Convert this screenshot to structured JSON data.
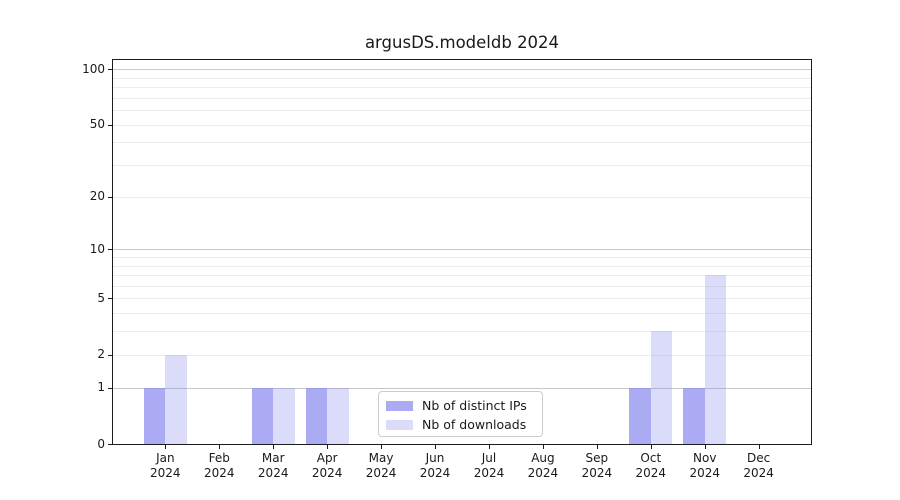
{
  "chart_data": {
    "type": "bar",
    "title": "argusDS.modeldb 2024",
    "categories": [
      "Jan",
      "Feb",
      "Mar",
      "Apr",
      "May",
      "Jun",
      "Jul",
      "Aug",
      "Sep",
      "Oct",
      "Nov",
      "Dec"
    ],
    "category_sublabel": "2024",
    "series": [
      {
        "name": "Nb of distinct IPs",
        "color": "rgba(136,136,238,0.7)",
        "values": [
          1,
          0,
          1,
          1,
          0,
          0,
          0,
          0,
          0,
          1,
          1,
          0
        ]
      },
      {
        "name": "Nb of downloads",
        "color": "rgba(136,136,238,0.3)",
        "values": [
          2,
          0,
          1,
          1,
          0,
          0,
          0,
          0,
          0,
          3,
          7,
          0
        ]
      }
    ],
    "yscale": "log1p",
    "ylabel": "",
    "xlabel": "",
    "y_tick_labels": [
      0,
      1,
      2,
      5,
      10,
      20,
      50,
      100
    ],
    "y_major_gridlines": [
      1,
      10,
      100
    ],
    "y_minor_gridlines": [
      2,
      3,
      4,
      5,
      6,
      7,
      8,
      9,
      20,
      30,
      40,
      50,
      60,
      70,
      80,
      90
    ],
    "ylim": [
      0,
      112
    ],
    "xlim": [
      -0.97,
      11.97
    ],
    "bar_width": 0.4,
    "grid": true,
    "legend_position": "lower center",
    "colors": {
      "bar_base": "#8888ee",
      "major_grid": "#c8c8c8",
      "minor_grid": "#ececec",
      "axis": "#1c1c1c",
      "text": "#1a1a1a",
      "legend_border": "#cccccc",
      "background": "#ffffff"
    }
  }
}
